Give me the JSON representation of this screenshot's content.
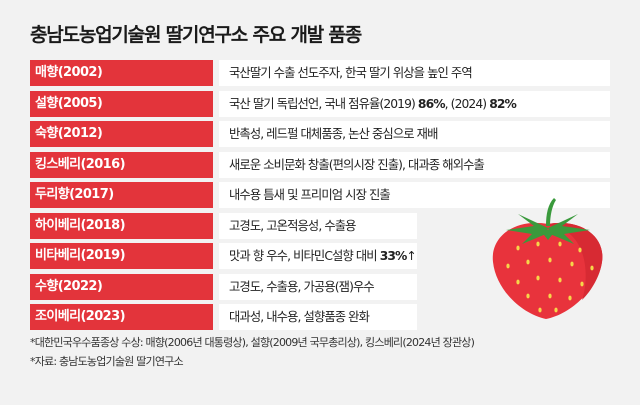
{
  "title": "충남도농업기술원 딸기연구소 주요 개발 품종",
  "rows": [
    {
      "name": "매향(2002)",
      "desc": "국산딸기 수출 선도주자, 한국 딸기 위상을 높인 주역"
    },
    {
      "name": "설향(2005)",
      "desc_pre": "국산 딸기 독립선언, 국내 점유율(2019) ",
      "desc_b1": "86%",
      "desc_mid": ", (2024) ",
      "desc_b2": "82%"
    },
    {
      "name": "숙향(2012)",
      "desc": "반촉성, 레드펄 대체품종, 논산 중심으로 재배"
    },
    {
      "name": "킹스베리(2016)",
      "desc": "새로운 소비문화 창출(편의시장 진출), 대과종 해외수출"
    },
    {
      "name": "두리향(2017)",
      "desc": "내수용 틈새 및 프리미엄 시장 진출"
    },
    {
      "name": "하이베리(2018)",
      "desc": "고경도, 고온적응성, 수출용"
    },
    {
      "name": "비타베리(2019)",
      "desc_pre": "맛과 향 우수, 비타민C설향 대비 ",
      "desc_b1": "33%",
      "desc_arrow": "↑"
    },
    {
      "name": "수향(2022)",
      "desc": "고경도, 수출용, 가공용(잼)우수"
    },
    {
      "name": "조이베리(2023)",
      "desc": "대과성, 내수용, 설향품종 완화"
    }
  ],
  "footnotes": [
    "*대한민국우수품종상 수상: 매향(2006년 대통령상), 설향(2009년 국무총리상), 킹스베리(2024년 장관상)",
    "*자료: 충남도농업기술원 딸기연구소"
  ],
  "colors": {
    "label_bg": "#e3343b",
    "background": "#f2f2f2",
    "strawberry": "#e8333c",
    "leaf": "#3a9a3c"
  },
  "illustration": "strawberry-icon"
}
